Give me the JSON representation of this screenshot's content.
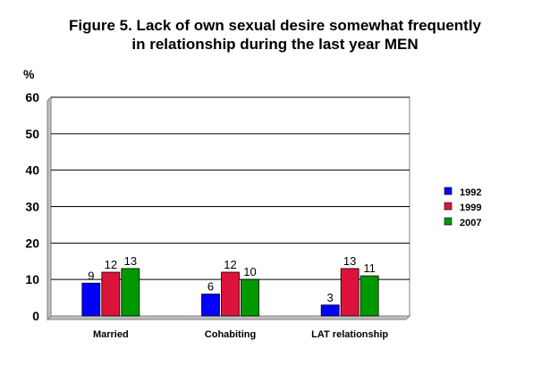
{
  "chart_data": {
    "type": "bar",
    "title_line1": "Figure 5. Lack of own sexual desire somewhat frequently",
    "title_line2": "in relationship during the last year MEN",
    "ylabel": "%",
    "xlabel": "",
    "ylim": [
      0,
      60
    ],
    "yticks": [
      "0",
      "10",
      "20",
      "30",
      "40",
      "50",
      "60"
    ],
    "grid": true,
    "legend_position": "right",
    "categories": [
      "Married",
      "Cohabiting",
      "LAT relationship"
    ],
    "series": [
      {
        "name": "1992",
        "color": "#0000ff",
        "values": [
          9,
          6,
          3
        ]
      },
      {
        "name": "1999",
        "color": "#dc143c",
        "values": [
          12,
          12,
          13
        ]
      },
      {
        "name": "2007",
        "color": "#009900",
        "values": [
          13,
          10,
          11
        ]
      }
    ]
  }
}
